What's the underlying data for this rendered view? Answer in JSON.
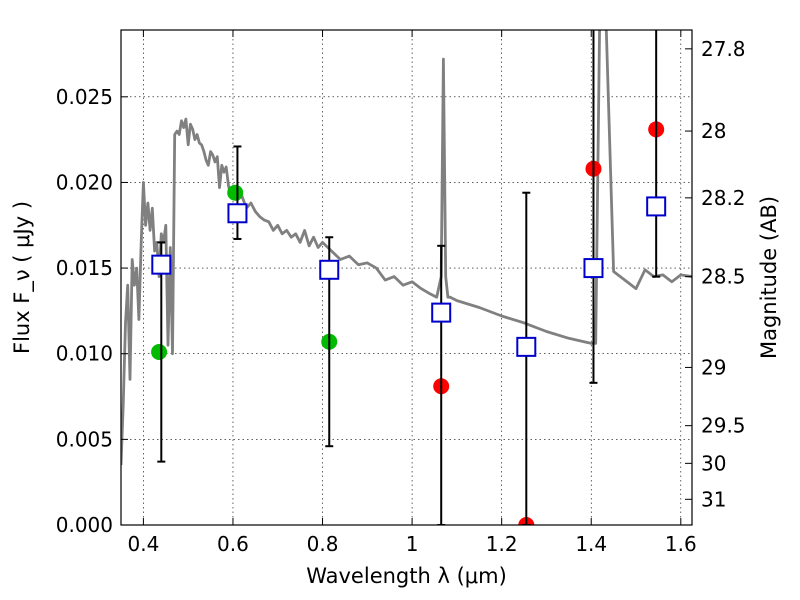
{
  "chart_data": {
    "type": "scatter",
    "xlabel": "Wavelength  λ (μm)",
    "ylabel": "Flux  F_ν  ( μJy )",
    "ylabel_right": "Magnitude (AB)",
    "xlim": [
      0.35,
      1.625
    ],
    "ylim": [
      0.0,
      0.0289
    ],
    "grid": true,
    "x_ticks": [
      0.4,
      0.6,
      0.8,
      1.0,
      1.2,
      1.4,
      1.6
    ],
    "x_tick_labels": [
      "0.4",
      "0.6",
      "0.8",
      "1",
      "1.2",
      "1.4",
      "1.6"
    ],
    "y_ticks": [
      0.0,
      0.005,
      0.01,
      0.015,
      0.02,
      0.025
    ],
    "y_tick_labels": [
      "0.000",
      "0.005",
      "0.010",
      "0.015",
      "0.020",
      "0.025"
    ],
    "right_ticks": [
      {
        "flux": 0.0278,
        "label": "27.8"
      },
      {
        "flux": 0.023,
        "label": "28"
      },
      {
        "flux": 0.0191,
        "label": "28.2"
      },
      {
        "flux": 0.0145,
        "label": "28.5"
      },
      {
        "flux": 0.0092,
        "label": "29"
      },
      {
        "flux": 0.0058,
        "label": "29.5"
      },
      {
        "flux": 0.0036,
        "label": "30"
      },
      {
        "flux": 0.0015,
        "label": "31"
      }
    ],
    "series": [
      {
        "kind": "line",
        "color": "#808080",
        "x": [
          0.35,
          0.355,
          0.36,
          0.365,
          0.37,
          0.375,
          0.38,
          0.385,
          0.39,
          0.395,
          0.4,
          0.405,
          0.41,
          0.415,
          0.42,
          0.425,
          0.43,
          0.435,
          0.44,
          0.445,
          0.45,
          0.455,
          0.46,
          0.465,
          0.47,
          0.475,
          0.48,
          0.485,
          0.49,
          0.495,
          0.5,
          0.505,
          0.51,
          0.515,
          0.52,
          0.525,
          0.53,
          0.535,
          0.54,
          0.545,
          0.55,
          0.555,
          0.56,
          0.565,
          0.57,
          0.575,
          0.58,
          0.585,
          0.59,
          0.595,
          0.6,
          0.61,
          0.62,
          0.63,
          0.64,
          0.65,
          0.66,
          0.67,
          0.68,
          0.69,
          0.7,
          0.71,
          0.72,
          0.73,
          0.74,
          0.75,
          0.76,
          0.77,
          0.78,
          0.79,
          0.8,
          0.82,
          0.84,
          0.86,
          0.88,
          0.9,
          0.92,
          0.94,
          0.96,
          0.98,
          1.0,
          1.02,
          1.04,
          1.055,
          1.065,
          1.07,
          1.075,
          1.08,
          1.085,
          1.1,
          1.15,
          1.2,
          1.25,
          1.3,
          1.35,
          1.4,
          1.41,
          1.42,
          1.43,
          1.45,
          1.5,
          1.52,
          1.54,
          1.56,
          1.58,
          1.6,
          1.625
        ],
        "y": [
          0.0035,
          0.007,
          0.0118,
          0.014,
          0.0085,
          0.0155,
          0.014,
          0.015,
          0.012,
          0.0165,
          0.02,
          0.0175,
          0.0188,
          0.0172,
          0.0185,
          0.016,
          0.0165,
          0.0145,
          0.017,
          0.0165,
          0.0175,
          0.0105,
          0.0162,
          0.01,
          0.0228,
          0.023,
          0.0228,
          0.0236,
          0.0232,
          0.0237,
          0.0222,
          0.0234,
          0.0231,
          0.0225,
          0.0228,
          0.0223,
          0.0222,
          0.0218,
          0.0213,
          0.021,
          0.0218,
          0.0216,
          0.0212,
          0.0215,
          0.0197,
          0.021,
          0.0206,
          0.0209,
          0.0198,
          0.0193,
          0.0197,
          0.019,
          0.0192,
          0.0185,
          0.0188,
          0.0183,
          0.018,
          0.0178,
          0.0177,
          0.0172,
          0.0175,
          0.017,
          0.0172,
          0.0168,
          0.017,
          0.0165,
          0.0172,
          0.0163,
          0.0168,
          0.0162,
          0.0165,
          0.016,
          0.0155,
          0.0157,
          0.0152,
          0.0153,
          0.015,
          0.0143,
          0.0145,
          0.014,
          0.0142,
          0.0138,
          0.0135,
          0.0133,
          0.0145,
          0.0272,
          0.0145,
          0.0133,
          0.0133,
          0.0131,
          0.0127,
          0.0122,
          0.0118,
          0.0113,
          0.0109,
          0.0106,
          0.0106,
          0.032,
          0.032,
          0.0148,
          0.0138,
          0.0149,
          0.0145,
          0.0146,
          0.0142,
          0.0146,
          0.0145
        ]
      },
      {
        "kind": "points",
        "marker": "circle",
        "color": "#00bb00",
        "x": [
          0.435,
          0.605,
          0.815
        ],
        "y": [
          0.0101,
          0.0194,
          0.0107
        ]
      },
      {
        "kind": "points",
        "marker": "circle",
        "color": "#ff0000",
        "x": [
          1.065,
          1.255,
          1.405,
          1.545
        ],
        "y": [
          0.0081,
          0.0,
          0.0208,
          0.0231
        ]
      },
      {
        "kind": "points",
        "marker": "square",
        "color": "#0000cc",
        "x": [
          0.44,
          0.61,
          0.815,
          1.065,
          1.255,
          1.405,
          1.545
        ],
        "y": [
          0.0152,
          0.0182,
          0.0149,
          0.0124,
          0.0104,
          0.015,
          0.0186
        ],
        "yerr_low": [
          0.0037,
          0.0167,
          0.0046,
          0.0,
          0.0,
          0.0083,
          0.0145
        ],
        "yerr_high": [
          0.0165,
          0.0221,
          0.0168,
          0.0163,
          0.0194,
          0.029,
          0.029
        ]
      }
    ]
  }
}
